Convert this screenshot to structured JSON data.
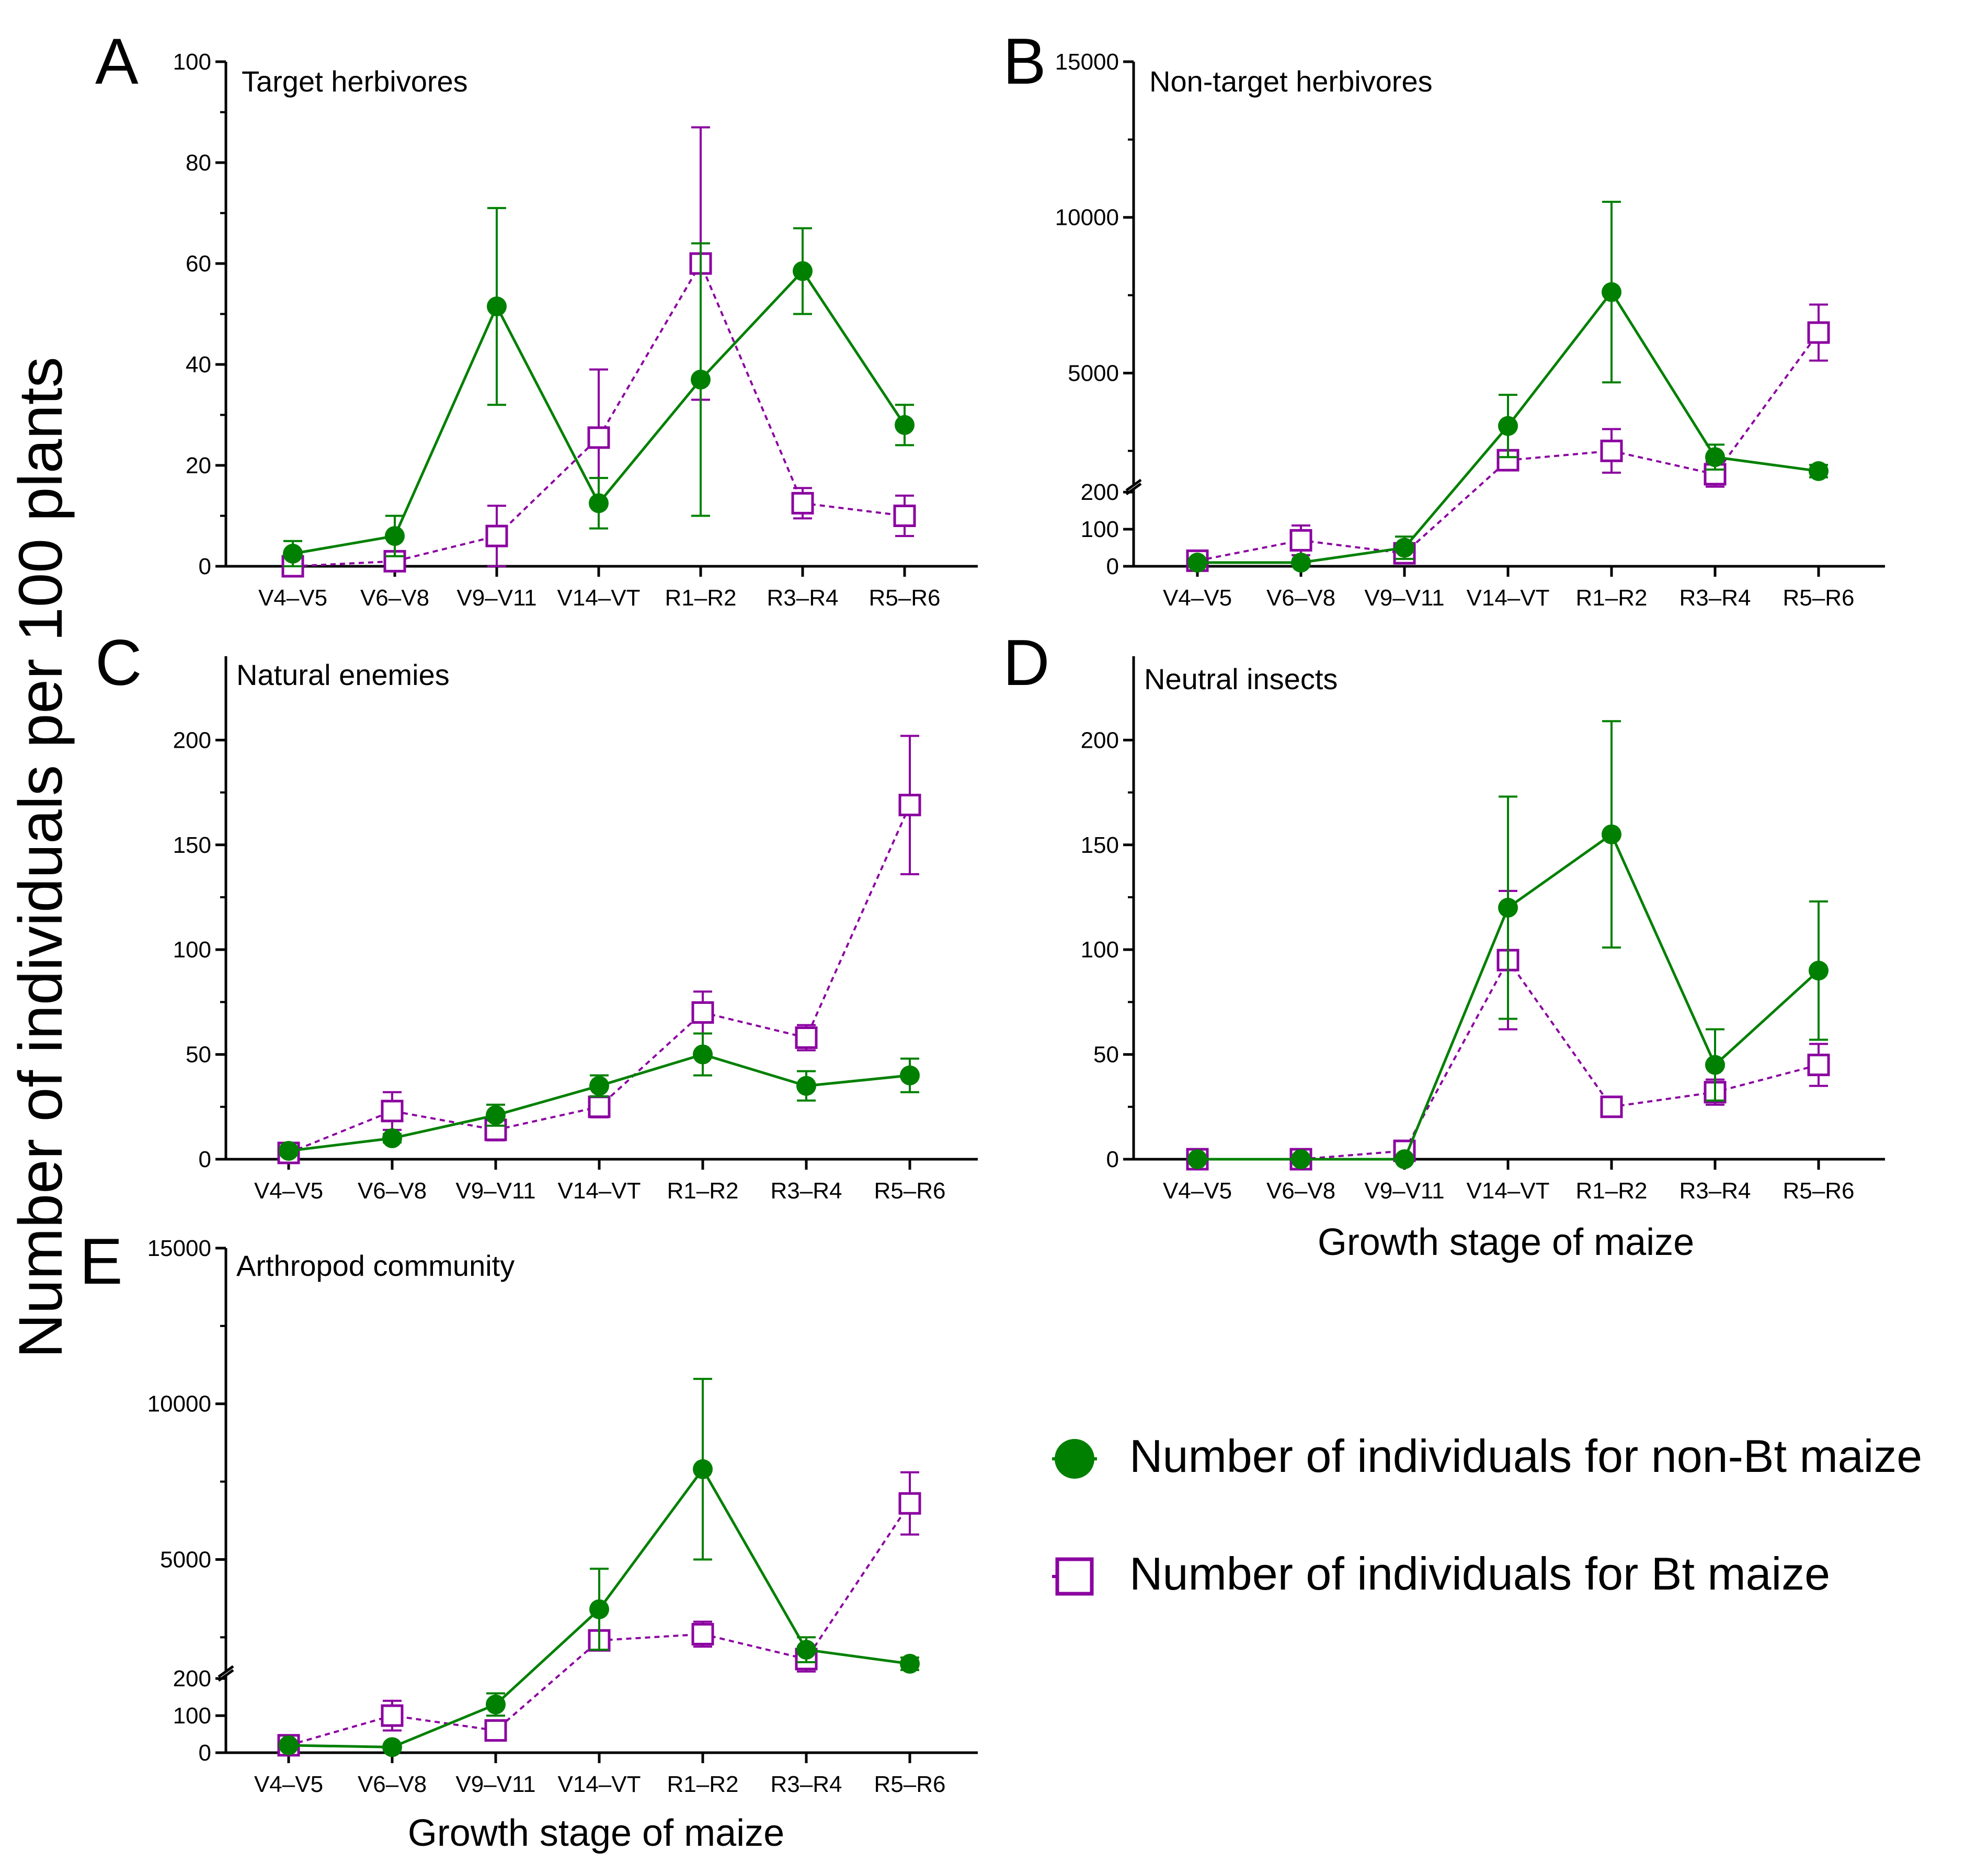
{
  "figure": {
    "y_axis_label": "Number of individuals per 100 plants",
    "x_axis_label": "Growth stage of maize"
  },
  "legend": {
    "nonbt_label": "Number of individuals for non-Bt maize",
    "bt_label": "Number of individuals for Bt maize"
  },
  "colors": {
    "nonbt": "#008000",
    "bt": "#8B00A0"
  },
  "chart_data": [
    {
      "type": "line",
      "panel_letter": "A",
      "title": "Target herbivores",
      "categories": [
        "V4–V5",
        "V6–V8",
        "V9–V11",
        "V14–VT",
        "R1–R2",
        "R3–R4",
        "R5–R6"
      ],
      "ylim": [
        0,
        100
      ],
      "yticks": [
        0,
        20,
        40,
        60,
        80,
        100
      ],
      "series": [
        {
          "name": "Number of individuals for non-Bt maize",
          "values": [
            2.5,
            6,
            51.5,
            12.5,
            37,
            58.5,
            28
          ],
          "err": [
            2.5,
            4,
            19.5,
            5,
            27,
            8.5,
            4
          ]
        },
        {
          "name": "Number of individuals for Bt maize",
          "values": [
            0,
            1,
            6,
            25.5,
            60,
            12.5,
            10
          ],
          "err": [
            0,
            1,
            6,
            13.5,
            27,
            3,
            4
          ]
        }
      ]
    },
    {
      "type": "line",
      "panel_letter": "B",
      "title": "Non-target herbivores",
      "categories": [
        "V4–V5",
        "V6–V8",
        "V9–V11",
        "V14–VT",
        "R1–R2",
        "R3–R4",
        "R5–R6"
      ],
      "ylim": [
        0,
        15000
      ],
      "axis_break": [
        200,
        1500
      ],
      "yticks": [
        0,
        100,
        200,
        5000,
        10000,
        15000
      ],
      "series": [
        {
          "name": "Number of individuals for non-Bt maize",
          "values": [
            10,
            10,
            50,
            3300,
            7600,
            2300,
            1850
          ],
          "err": [
            0,
            0,
            30,
            1000,
            2900,
            400,
            200
          ]
        },
        {
          "name": "Number of individuals for Bt maize",
          "values": [
            15,
            70,
            35,
            2200,
            2500,
            1750,
            6300
          ],
          "err": [
            10,
            40,
            20,
            250,
            700,
            400,
            900
          ]
        }
      ]
    },
    {
      "type": "line",
      "panel_letter": "C",
      "title": "Natural enemies",
      "categories": [
        "V4–V5",
        "V6–V8",
        "V9–V11",
        "V14–VT",
        "R1–R2",
        "R3–R4",
        "R5–R6"
      ],
      "ylim": [
        0,
        240
      ],
      "yticks": [
        0,
        50,
        100,
        150,
        200
      ],
      "series": [
        {
          "name": "Number of individuals for non-Bt maize",
          "values": [
            4,
            10,
            21,
            35,
            50,
            35,
            40
          ],
          "err": [
            2,
            2,
            5,
            5,
            10,
            7,
            8
          ]
        },
        {
          "name": "Number of individuals for Bt maize",
          "values": [
            3,
            23,
            14,
            25,
            70,
            58,
            169
          ],
          "err": [
            1,
            9,
            5,
            5,
            10,
            6,
            33
          ]
        }
      ]
    },
    {
      "type": "line",
      "panel_letter": "D",
      "title": "Neutral insects",
      "categories": [
        "V4–V5",
        "V6–V8",
        "V9–V11",
        "V14–VT",
        "R1–R2",
        "R3–R4",
        "R5–R6"
      ],
      "ylim": [
        0,
        240
      ],
      "yticks": [
        0,
        50,
        100,
        150,
        200
      ],
      "series": [
        {
          "name": "Number of individuals for non-Bt maize",
          "values": [
            0,
            0,
            0,
            120,
            155,
            45,
            90
          ],
          "err": [
            0,
            0,
            0,
            53,
            54,
            17,
            33
          ]
        },
        {
          "name": "Number of individuals for Bt maize",
          "values": [
            0,
            0,
            4,
            95,
            25,
            32,
            45
          ],
          "err": [
            0,
            0,
            0,
            33,
            3,
            6,
            10
          ]
        }
      ]
    },
    {
      "type": "line",
      "panel_letter": "E",
      "title": "Arthropod community",
      "categories": [
        "V4–V5",
        "V6–V8",
        "V9–V11",
        "V14–VT",
        "R1–R2",
        "R3–R4",
        "R5–R6"
      ],
      "ylim": [
        0,
        15000
      ],
      "axis_break": [
        200,
        1500
      ],
      "yticks": [
        0,
        100,
        200,
        5000,
        10000,
        15000
      ],
      "series": [
        {
          "name": "Number of individuals for non-Bt maize",
          "values": [
            20,
            15,
            130,
            3400,
            7900,
            2100,
            1650
          ],
          "err": [
            5,
            5,
            30,
            1300,
            2900,
            400,
            200
          ]
        },
        {
          "name": "Number of individuals for Bt maize",
          "values": [
            20,
            100,
            60,
            2400,
            2600,
            1800,
            6800
          ],
          "err": [
            10,
            40,
            20,
            300,
            400,
            400,
            1000
          ]
        }
      ]
    }
  ]
}
